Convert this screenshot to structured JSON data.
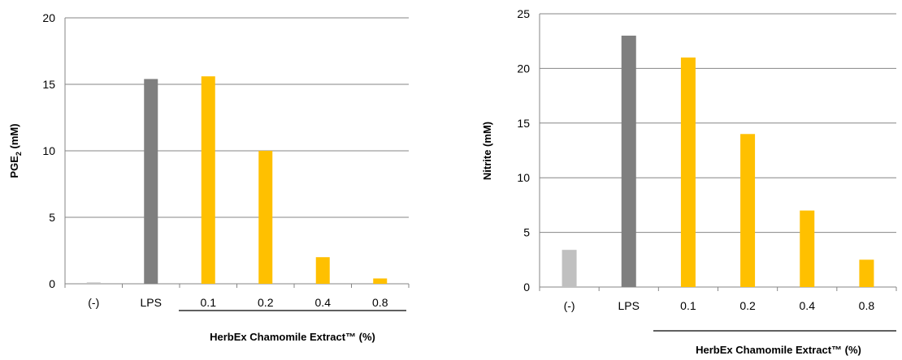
{
  "colors": {
    "negative": "#c0c0c0",
    "lps": "#7f7f7f",
    "extract": "#ffc000",
    "grid": "#868686",
    "axis": "#868686"
  },
  "chart_data": [
    {
      "type": "bar",
      "categories": [
        "(-)",
        "LPS",
        "0.1",
        "0.2",
        "0.4",
        "0.8"
      ],
      "values": [
        0.1,
        15.4,
        15.6,
        10.0,
        2.0,
        0.4
      ],
      "bar_colors": [
        "#c0c0c0",
        "#7f7f7f",
        "#ffc000",
        "#ffc000",
        "#ffc000",
        "#ffc000"
      ],
      "ylabel": "PGE",
      "ylabel_subscript": "2",
      "ylabel_suffix": " (mM)",
      "group_label": "HerbEx Chamomile Extract™ (%)",
      "ylim": [
        0,
        20
      ],
      "yticks": [
        0,
        5,
        10,
        15,
        20
      ],
      "grid": true
    },
    {
      "type": "bar",
      "categories": [
        "(-)",
        "LPS",
        "0.1",
        "0.2",
        "0.4",
        "0.8"
      ],
      "values": [
        3.4,
        23.0,
        21.0,
        14.0,
        7.0,
        2.5
      ],
      "bar_colors": [
        "#c0c0c0",
        "#7f7f7f",
        "#ffc000",
        "#ffc000",
        "#ffc000",
        "#ffc000"
      ],
      "ylabel": "Nitrite (mM)",
      "group_label": "HerbEx Chamomile Extract™ (%)",
      "ylim": [
        0,
        25
      ],
      "yticks": [
        0,
        5,
        10,
        15,
        20,
        25
      ],
      "grid": true
    }
  ]
}
